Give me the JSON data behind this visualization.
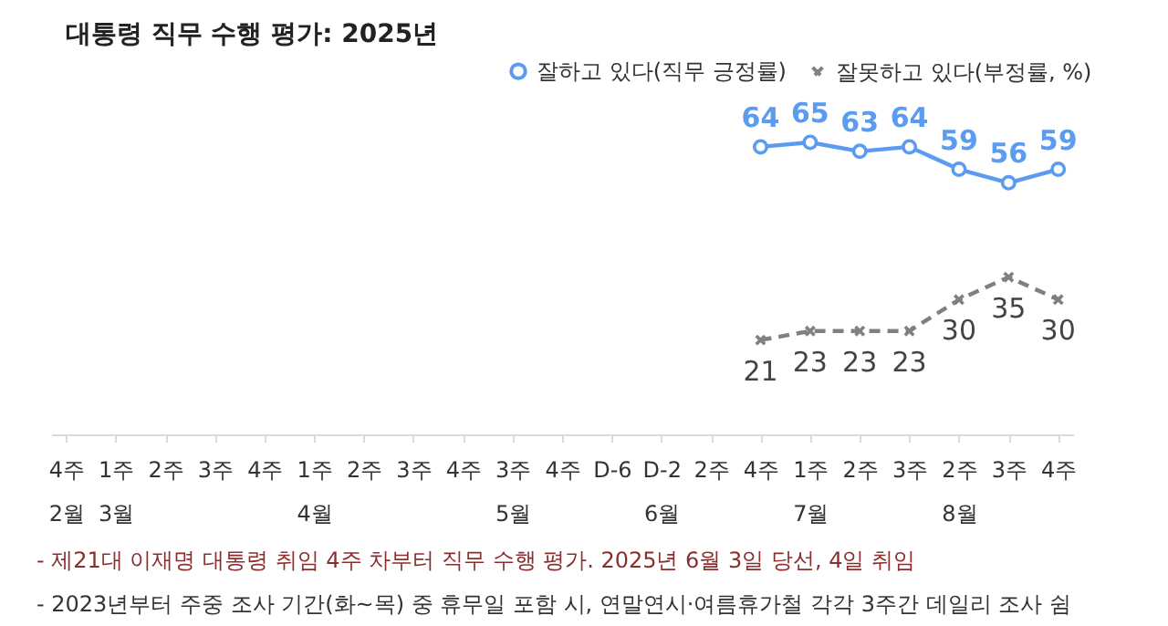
{
  "chart_data": {
    "type": "line",
    "title": "대통령 직무 수행 평가: 2025년",
    "categories": [
      "4주\n2월",
      "1주\n3월",
      "2주",
      "3주",
      "4주",
      "1주\n4월",
      "2주",
      "3주",
      "4주",
      "3주\n5월",
      "4주",
      "D-6",
      "D-2\n6월",
      "2주",
      "4주",
      "1주\n7월",
      "2주",
      "3주",
      "2주\n8월",
      "3주",
      "4주"
    ],
    "series": [
      {
        "name": "잘하고 있다(직무 긍정률)",
        "color": "#5b9bf0",
        "marker": "circle",
        "line_style": "solid",
        "values": [
          null,
          null,
          null,
          null,
          null,
          null,
          null,
          null,
          null,
          null,
          null,
          null,
          null,
          null,
          64,
          65,
          63,
          64,
          59,
          56,
          59
        ]
      },
      {
        "name": "잘못하고 있다(부정률, %)",
        "color": "#808080",
        "marker": "cross",
        "line_style": "dashed",
        "values": [
          null,
          null,
          null,
          null,
          null,
          null,
          null,
          null,
          null,
          null,
          null,
          null,
          null,
          null,
          21,
          23,
          23,
          23,
          30,
          35,
          30
        ]
      }
    ],
    "data_labels": true,
    "legend": "top right",
    "grid": false,
    "annotations": [
      "- 제21대 이재명 대통령 취임 4주 차부터 직무 수행 평가. 2025년 6월 3일 당선, 4일 취임",
      "- 2023년부터 주중 조사 기간(화~목) 중 휴무일 포함 시, 연말연시·여름휴가철 각각 3주간 데일리 조사 쉼"
    ]
  }
}
